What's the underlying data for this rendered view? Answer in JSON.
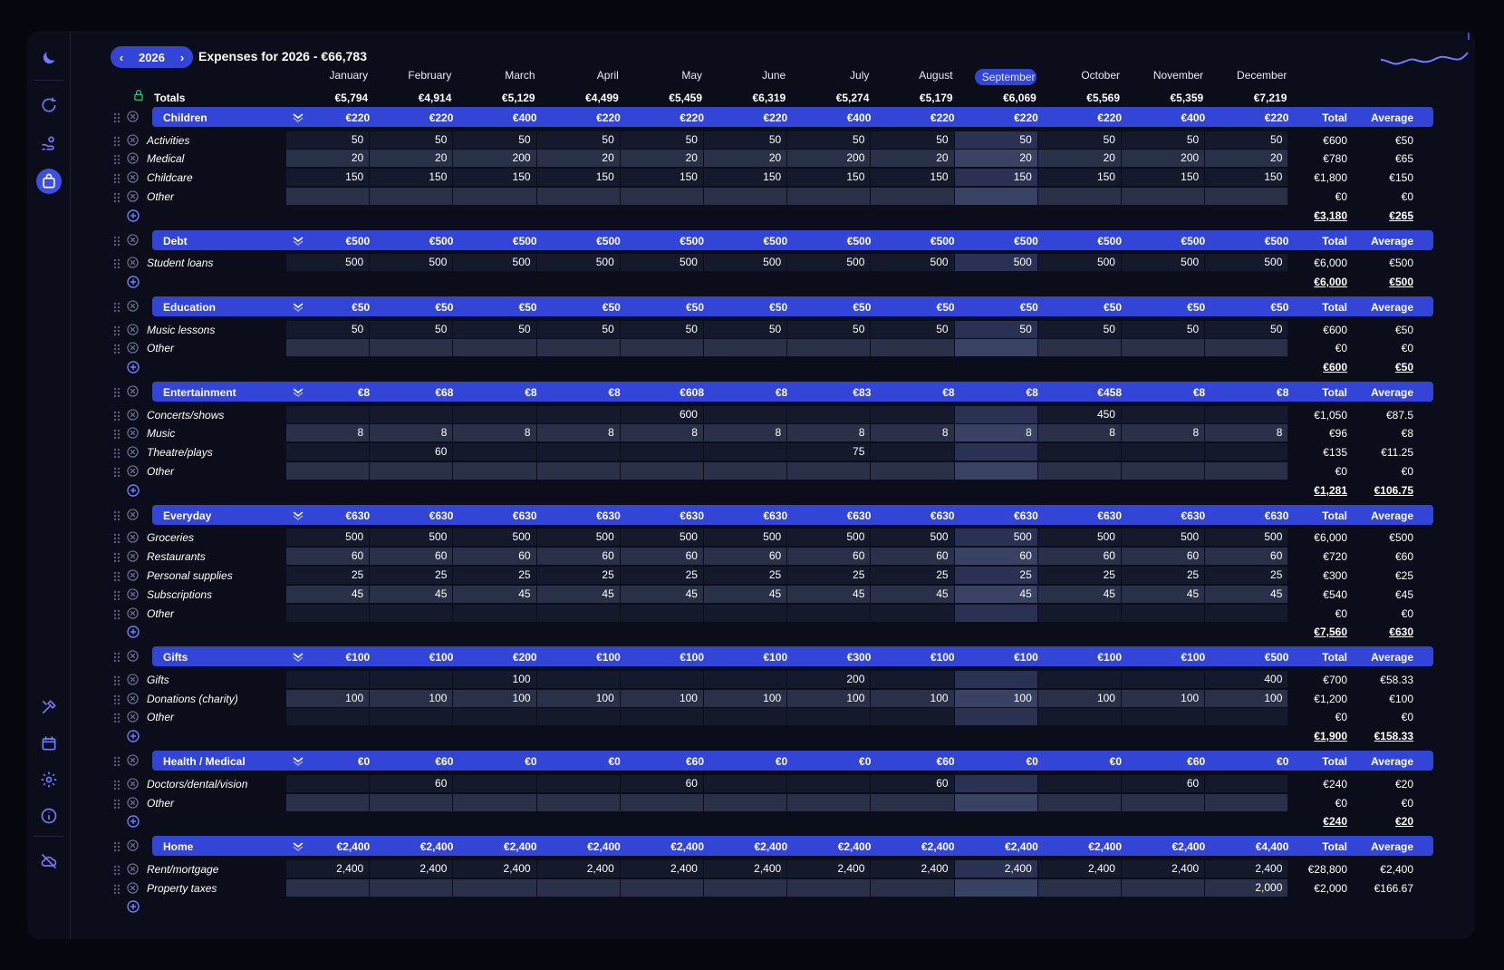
{
  "year": "2026",
  "title": "Expenses for 2026  -  €66,783",
  "months": [
    "January",
    "February",
    "March",
    "April",
    "May",
    "June",
    "July",
    "August",
    "September",
    "October",
    "November",
    "December"
  ],
  "current_month": "September",
  "totals_label": "Totals",
  "totals": [
    "€5,794",
    "€4,914",
    "€5,129",
    "€4,499",
    "€5,459",
    "€6,319",
    "€5,274",
    "€5,179",
    "€6,069",
    "€5,569",
    "€5,359",
    "€7,219"
  ],
  "total_col": "Total",
  "avg_col": "Average",
  "colors": {
    "accent": "#3345d6",
    "bg": "#0b0e1a",
    "positive": "#32c27a"
  },
  "sidebar_icons": [
    "moon-icon",
    "refresh-icon",
    "hand-coins-icon",
    "shopping-bag-icon",
    "tools-icon",
    "calendar-icon",
    "settings-icon",
    "info-icon",
    "cloud-off-icon"
  ],
  "categories": [
    {
      "name": "Children",
      "monthly": [
        "€220",
        "€220",
        "€400",
        "€220",
        "€220",
        "€220",
        "€400",
        "€220",
        "€220",
        "€220",
        "€400",
        "€220"
      ],
      "rows": [
        {
          "name": "Activities",
          "values": [
            "50",
            "50",
            "50",
            "50",
            "50",
            "50",
            "50",
            "50",
            "50",
            "50",
            "50",
            "50"
          ],
          "total": "€600",
          "avg": "€50"
        },
        {
          "name": "Medical",
          "values": [
            "20",
            "20",
            "200",
            "20",
            "20",
            "20",
            "200",
            "20",
            "20",
            "20",
            "200",
            "20"
          ],
          "total": "€780",
          "avg": "€65"
        },
        {
          "name": "Childcare",
          "values": [
            "150",
            "150",
            "150",
            "150",
            "150",
            "150",
            "150",
            "150",
            "150",
            "150",
            "150",
            "150"
          ],
          "total": "€1,800",
          "avg": "€150"
        },
        {
          "name": "Other",
          "values": [
            "",
            "",
            "",
            "",
            "",
            "",
            "",
            "",
            "",
            "",
            "",
            ""
          ],
          "total": "€0",
          "avg": "€0"
        }
      ],
      "sub_total": "€3,180",
      "sub_avg": "€265"
    },
    {
      "name": "Debt",
      "monthly": [
        "€500",
        "€500",
        "€500",
        "€500",
        "€500",
        "€500",
        "€500",
        "€500",
        "€500",
        "€500",
        "€500",
        "€500"
      ],
      "rows": [
        {
          "name": "Student loans",
          "values": [
            "500",
            "500",
            "500",
            "500",
            "500",
            "500",
            "500",
            "500",
            "500",
            "500",
            "500",
            "500"
          ],
          "total": "€6,000",
          "avg": "€500"
        }
      ],
      "sub_total": "€6,000",
      "sub_avg": "€500"
    },
    {
      "name": "Education",
      "monthly": [
        "€50",
        "€50",
        "€50",
        "€50",
        "€50",
        "€50",
        "€50",
        "€50",
        "€50",
        "€50",
        "€50",
        "€50"
      ],
      "rows": [
        {
          "name": "Music lessons",
          "values": [
            "50",
            "50",
            "50",
            "50",
            "50",
            "50",
            "50",
            "50",
            "50",
            "50",
            "50",
            "50"
          ],
          "total": "€600",
          "avg": "€50"
        },
        {
          "name": "Other",
          "values": [
            "",
            "",
            "",
            "",
            "",
            "",
            "",
            "",
            "",
            "",
            "",
            ""
          ],
          "total": "€0",
          "avg": "€0"
        }
      ],
      "sub_total": "€600",
      "sub_avg": "€50"
    },
    {
      "name": "Entertainment",
      "monthly": [
        "€8",
        "€68",
        "€8",
        "€8",
        "€608",
        "€8",
        "€83",
        "€8",
        "€8",
        "€458",
        "€8",
        "€8"
      ],
      "rows": [
        {
          "name": "Concerts/shows",
          "values": [
            "",
            "",
            "",
            "",
            "600",
            "",
            "",
            "",
            "",
            "450",
            "",
            ""
          ],
          "total": "€1,050",
          "avg": "€87.5"
        },
        {
          "name": "Music",
          "values": [
            "8",
            "8",
            "8",
            "8",
            "8",
            "8",
            "8",
            "8",
            "8",
            "8",
            "8",
            "8"
          ],
          "total": "€96",
          "avg": "€8"
        },
        {
          "name": "Theatre/plays",
          "values": [
            "",
            "60",
            "",
            "",
            "",
            "",
            "75",
            "",
            "",
            "",
            "",
            ""
          ],
          "total": "€135",
          "avg": "€11.25"
        },
        {
          "name": "Other",
          "values": [
            "",
            "",
            "",
            "",
            "",
            "",
            "",
            "",
            "",
            "",
            "",
            ""
          ],
          "total": "€0",
          "avg": "€0"
        }
      ],
      "sub_total": "€1,281",
      "sub_avg": "€106.75"
    },
    {
      "name": "Everyday",
      "monthly": [
        "€630",
        "€630",
        "€630",
        "€630",
        "€630",
        "€630",
        "€630",
        "€630",
        "€630",
        "€630",
        "€630",
        "€630"
      ],
      "rows": [
        {
          "name": "Groceries",
          "values": [
            "500",
            "500",
            "500",
            "500",
            "500",
            "500",
            "500",
            "500",
            "500",
            "500",
            "500",
            "500"
          ],
          "total": "€6,000",
          "avg": "€500"
        },
        {
          "name": "Restaurants",
          "values": [
            "60",
            "60",
            "60",
            "60",
            "60",
            "60",
            "60",
            "60",
            "60",
            "60",
            "60",
            "60"
          ],
          "total": "€720",
          "avg": "€60"
        },
        {
          "name": "Personal supplies",
          "values": [
            "25",
            "25",
            "25",
            "25",
            "25",
            "25",
            "25",
            "25",
            "25",
            "25",
            "25",
            "25"
          ],
          "total": "€300",
          "avg": "€25"
        },
        {
          "name": "Subscriptions",
          "values": [
            "45",
            "45",
            "45",
            "45",
            "45",
            "45",
            "45",
            "45",
            "45",
            "45",
            "45",
            "45"
          ],
          "total": "€540",
          "avg": "€45"
        },
        {
          "name": "Other",
          "values": [
            "",
            "",
            "",
            "",
            "",
            "",
            "",
            "",
            "",
            "",
            "",
            ""
          ],
          "total": "€0",
          "avg": "€0"
        }
      ],
      "sub_total": "€7,560",
      "sub_avg": "€630"
    },
    {
      "name": "Gifts",
      "monthly": [
        "€100",
        "€100",
        "€200",
        "€100",
        "€100",
        "€100",
        "€300",
        "€100",
        "€100",
        "€100",
        "€100",
        "€500"
      ],
      "rows": [
        {
          "name": "Gifts",
          "values": [
            "",
            "",
            "100",
            "",
            "",
            "",
            "200",
            "",
            "",
            "",
            "",
            "400"
          ],
          "total": "€700",
          "avg": "€58.33"
        },
        {
          "name": "Donations (charity)",
          "values": [
            "100",
            "100",
            "100",
            "100",
            "100",
            "100",
            "100",
            "100",
            "100",
            "100",
            "100",
            "100"
          ],
          "total": "€1,200",
          "avg": "€100"
        },
        {
          "name": "Other",
          "values": [
            "",
            "",
            "",
            "",
            "",
            "",
            "",
            "",
            "",
            "",
            "",
            ""
          ],
          "total": "€0",
          "avg": "€0"
        }
      ],
      "sub_total": "€1,900",
      "sub_avg": "€158.33"
    },
    {
      "name": "Health / Medical",
      "monthly": [
        "€0",
        "€60",
        "€0",
        "€0",
        "€60",
        "€0",
        "€0",
        "€60",
        "€0",
        "€0",
        "€60",
        "€0"
      ],
      "rows": [
        {
          "name": "Doctors/dental/vision",
          "values": [
            "",
            "60",
            "",
            "",
            "60",
            "",
            "",
            "60",
            "",
            "",
            "60",
            ""
          ],
          "total": "€240",
          "avg": "€20"
        },
        {
          "name": "Other",
          "values": [
            "",
            "",
            "",
            "",
            "",
            "",
            "",
            "",
            "",
            "",
            "",
            ""
          ],
          "total": "€0",
          "avg": "€0"
        }
      ],
      "sub_total": "€240",
      "sub_avg": "€20"
    },
    {
      "name": "Home",
      "monthly": [
        "€2,400",
        "€2,400",
        "€2,400",
        "€2,400",
        "€2,400",
        "€2,400",
        "€2,400",
        "€2,400",
        "€2,400",
        "€2,400",
        "€2,400",
        "€4,400"
      ],
      "rows": [
        {
          "name": "Rent/mortgage",
          "values": [
            "2,400",
            "2,400",
            "2,400",
            "2,400",
            "2,400",
            "2,400",
            "2,400",
            "2,400",
            "2,400",
            "2,400",
            "2,400",
            "2,400"
          ],
          "total": "€28,800",
          "avg": "€2,400"
        },
        {
          "name": "Property taxes",
          "values": [
            "",
            "",
            "",
            "",
            "",
            "",
            "",
            "",
            "",
            "",
            "",
            "2,000"
          ],
          "total": "€2,000",
          "avg": "€166.67"
        }
      ],
      "sub_total": "",
      "sub_avg": ""
    }
  ]
}
